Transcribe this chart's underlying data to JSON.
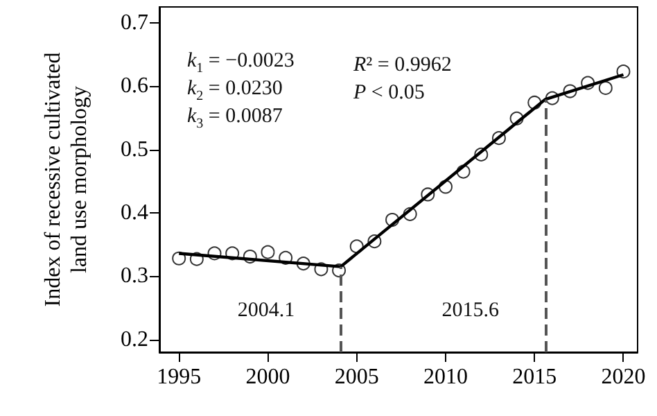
{
  "chart_data": {
    "type": "scatter",
    "ylabel": "Index of recessive cultivated\nland use morphology",
    "xlim": [
      1993.9,
      2020.8
    ],
    "xticks": [
      1995,
      2000,
      2005,
      2010,
      2015,
      2020
    ],
    "ylim": [
      0.18,
      0.725
    ],
    "yticks": [
      0.2,
      0.3,
      0.4,
      0.5,
      0.6,
      0.7
    ],
    "grid": false,
    "series": [
      {
        "marker": "circle",
        "color": "#000000",
        "x": [
          1995,
          1996,
          1997,
          1998,
          1999,
          2000,
          2001,
          2002,
          2003,
          2004,
          2005,
          2006,
          2007,
          2008,
          2009,
          2010,
          2011,
          2012,
          2013,
          2014,
          2015,
          2016,
          2017,
          2018,
          2019,
          2020
        ],
        "values": [
          0.328,
          0.327,
          0.336,
          0.336,
          0.331,
          0.338,
          0.329,
          0.32,
          0.311,
          0.309,
          0.347,
          0.355,
          0.389,
          0.398,
          0.429,
          0.441,
          0.465,
          0.492,
          0.518,
          0.549,
          0.574,
          0.581,
          0.592,
          0.605,
          0.597,
          0.623
        ]
      },
      {
        "type": "line",
        "marker": "none",
        "color": "#000000",
        "x": [
          1995,
          2004.1,
          2015.6,
          2020
        ],
        "values": [
          0.336,
          0.315,
          0.579,
          0.618
        ]
      }
    ],
    "ref_lines": [
      {
        "axis": "x",
        "value": 2004.1,
        "label": "2004.1",
        "color": "#555555",
        "line_style": "dashed"
      },
      {
        "axis": "x",
        "value": 2015.6,
        "label": "2015.6",
        "color": "#555555",
        "line_style": "dashed"
      }
    ],
    "annotations": [
      "k$_{1}$ = −0.0023",
      "k$_{2}$ = 0.0230",
      "k$_{3}$ = 0.0087",
      "R² = 0.9962",
      "P < 0.05"
    ]
  }
}
